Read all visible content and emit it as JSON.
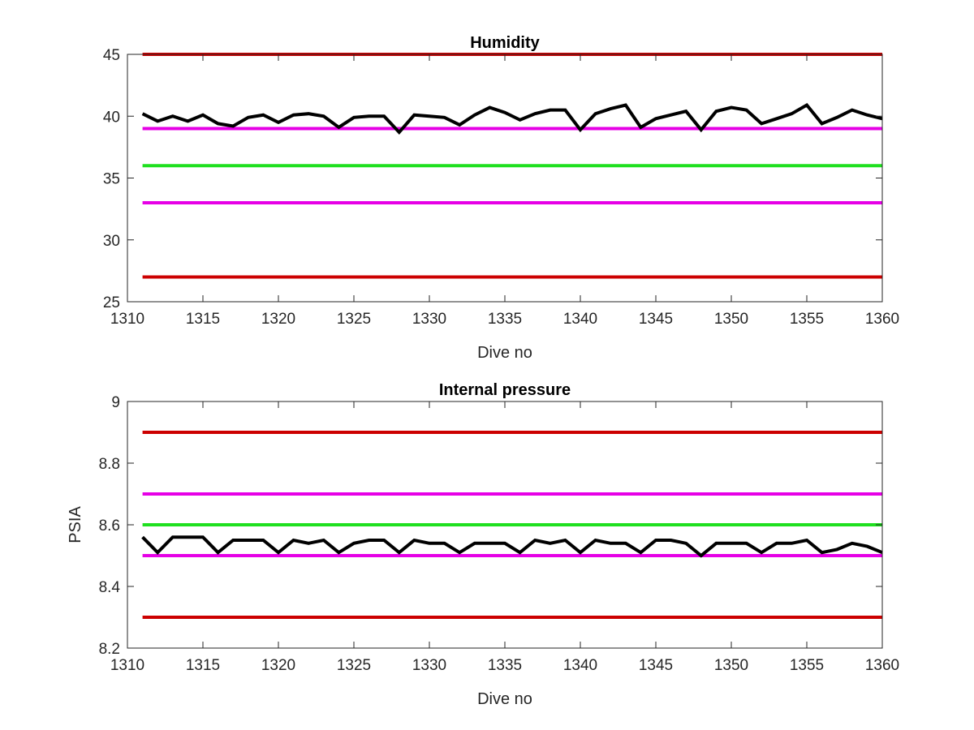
{
  "chart_data": [
    {
      "type": "line",
      "title": "Humidity",
      "xlabel": "Dive no",
      "ylabel": "",
      "xlim": [
        1310,
        1360
      ],
      "ylim": [
        25,
        45
      ],
      "xticks": [
        "1310",
        "1315",
        "1320",
        "1325",
        "1330",
        "1335",
        "1340",
        "1345",
        "1350",
        "1355",
        "1360"
      ],
      "yticks": [
        "25",
        "30",
        "35",
        "40",
        "45"
      ],
      "thresholds": [
        {
          "value": 45,
          "color": "#cc0000"
        },
        {
          "value": 39,
          "color": "#e600e6"
        },
        {
          "value": 36,
          "color": "#1fe01f"
        },
        {
          "value": 33,
          "color": "#e600e6"
        },
        {
          "value": 27,
          "color": "#cc0000"
        }
      ],
      "series": [
        {
          "color": "#000000",
          "x": [
            1311,
            1312,
            1313,
            1314,
            1315,
            1316,
            1317,
            1318,
            1319,
            1320,
            1321,
            1322,
            1323,
            1324,
            1325,
            1326,
            1327,
            1328,
            1329,
            1330,
            1331,
            1332,
            1333,
            1334,
            1335,
            1336,
            1337,
            1338,
            1339,
            1340,
            1341,
            1342,
            1343,
            1344,
            1345,
            1346,
            1347,
            1348,
            1349,
            1350,
            1351,
            1352,
            1353,
            1354,
            1355,
            1356,
            1357,
            1358,
            1359,
            1360
          ],
          "values": [
            40.2,
            39.6,
            40.0,
            39.6,
            40.1,
            39.4,
            39.2,
            39.9,
            40.1,
            39.5,
            40.1,
            40.2,
            40.0,
            39.1,
            39.9,
            40.0,
            40.0,
            38.7,
            40.1,
            40.0,
            39.9,
            39.3,
            40.1,
            40.7,
            40.3,
            39.7,
            40.2,
            40.5,
            40.5,
            38.9,
            40.2,
            40.6,
            40.9,
            39.1,
            39.8,
            40.1,
            40.4,
            38.9,
            40.4,
            40.7,
            40.5,
            39.4,
            39.8,
            40.2,
            40.9,
            39.4,
            39.9,
            40.5,
            40.1,
            39.8
          ]
        }
      ]
    },
    {
      "type": "line",
      "title": "Internal pressure",
      "xlabel": "Dive no",
      "ylabel": "PSIA",
      "xlim": [
        1310,
        1360
      ],
      "ylim": [
        8.2,
        9.0
      ],
      "xticks": [
        "1310",
        "1315",
        "1320",
        "1325",
        "1330",
        "1335",
        "1340",
        "1345",
        "1350",
        "1355",
        "1360"
      ],
      "yticks": [
        "8.2",
        "8.4",
        "8.6",
        "8.8",
        "9"
      ],
      "thresholds": [
        {
          "value": 8.9,
          "color": "#cc0000"
        },
        {
          "value": 8.7,
          "color": "#e600e6"
        },
        {
          "value": 8.6,
          "color": "#1fe01f"
        },
        {
          "value": 8.5,
          "color": "#e600e6"
        },
        {
          "value": 8.3,
          "color": "#cc0000"
        }
      ],
      "series": [
        {
          "color": "#000000",
          "x": [
            1311,
            1312,
            1313,
            1314,
            1315,
            1316,
            1317,
            1318,
            1319,
            1320,
            1321,
            1322,
            1323,
            1324,
            1325,
            1326,
            1327,
            1328,
            1329,
            1330,
            1331,
            1332,
            1333,
            1334,
            1335,
            1336,
            1337,
            1338,
            1339,
            1340,
            1341,
            1342,
            1343,
            1344,
            1345,
            1346,
            1347,
            1348,
            1349,
            1350,
            1351,
            1352,
            1353,
            1354,
            1355,
            1356,
            1357,
            1358,
            1359,
            1360
          ],
          "values": [
            8.56,
            8.51,
            8.56,
            8.56,
            8.56,
            8.51,
            8.55,
            8.55,
            8.55,
            8.51,
            8.55,
            8.54,
            8.55,
            8.51,
            8.54,
            8.55,
            8.55,
            8.51,
            8.55,
            8.54,
            8.54,
            8.51,
            8.54,
            8.54,
            8.54,
            8.51,
            8.55,
            8.54,
            8.55,
            8.51,
            8.55,
            8.54,
            8.54,
            8.51,
            8.55,
            8.55,
            8.54,
            8.5,
            8.54,
            8.54,
            8.54,
            8.51,
            8.54,
            8.54,
            8.55,
            8.51,
            8.52,
            8.54,
            8.53,
            8.51
          ]
        }
      ]
    }
  ]
}
